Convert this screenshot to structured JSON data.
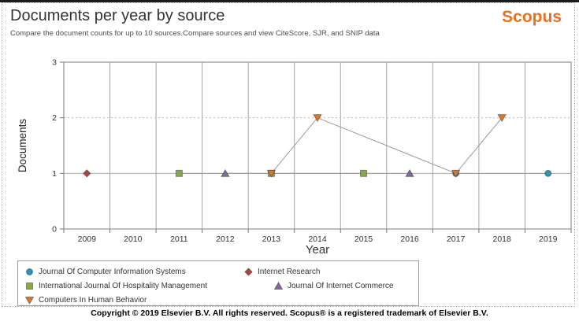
{
  "header": {
    "title": "Documents per year by source",
    "subtitle": "Compare the document counts for up to 10 sources.Compare sources and view CiteScore, SJR, and SNIP data",
    "logo": "Scopus",
    "logo_color": "#E9711C"
  },
  "chart_data": {
    "type": "line",
    "title": "Documents per year by source",
    "xlabel": "Year",
    "ylabel": "Documents",
    "x": [
      2009,
      2010,
      2011,
      2012,
      2013,
      2014,
      2015,
      2016,
      2017,
      2018,
      2019
    ],
    "yticks": [
      0,
      1,
      2,
      3
    ],
    "ylim": [
      0,
      3
    ],
    "grid": true,
    "legend_position": "bottom",
    "line_color": "#999999",
    "series": [
      {
        "name": "Journal Of Computer Information Systems",
        "marker": "circle",
        "color": "#2E93B9",
        "points": [
          [
            2017,
            1
          ],
          [
            2019,
            1
          ]
        ]
      },
      {
        "name": "Internet Research",
        "marker": "diamond",
        "color": "#AA4643",
        "points": [
          [
            2009,
            1
          ]
        ]
      },
      {
        "name": "International Journal Of Hospitality Management",
        "marker": "square",
        "color": "#89A54E",
        "points": [
          [
            2011,
            1
          ],
          [
            2013,
            1
          ],
          [
            2015,
            1
          ]
        ]
      },
      {
        "name": "Journal Of Internet Commerce",
        "marker": "triangle-up",
        "color": "#80699B",
        "points": [
          [
            2012,
            1
          ],
          [
            2016,
            1
          ]
        ]
      },
      {
        "name": "Computers In Human Behavior",
        "marker": "triangle-down",
        "color": "#D9782D",
        "points": [
          [
            2013,
            1
          ],
          [
            2014,
            2
          ],
          [
            2017,
            1
          ],
          [
            2018,
            2
          ]
        ]
      }
    ]
  },
  "footer": {
    "copyright": "Copyright © 2019 Elsevier B.V. All rights reserved. Scopus® is a registered trademark of Elsevier B.V."
  }
}
